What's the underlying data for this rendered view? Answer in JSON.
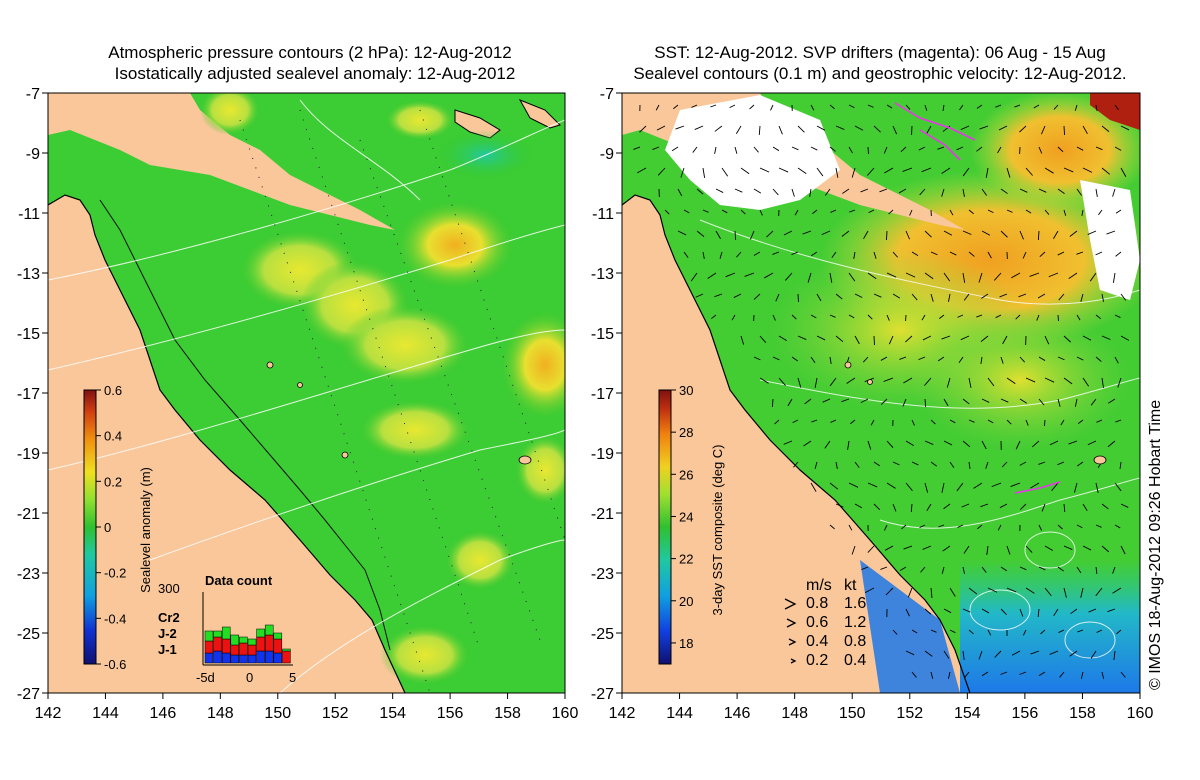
{
  "left_panel": {
    "title_line1": "Atmospheric pressure contours (2 hPa): 12-Aug-2012",
    "title_line2": "Isostatically adjusted sealevel anomaly: 12-Aug-2012",
    "colorbar": {
      "label": "Sealevel anomaly (m)",
      "ticks": [
        "0.6",
        "0.4",
        "0.2",
        "0",
        "-0.2",
        "-0.4",
        "-0.6"
      ],
      "range": [
        -0.6,
        0.6
      ]
    },
    "data_count": {
      "title": "Data count",
      "ymax_label": "300",
      "x_labels": [
        "-5d",
        "0",
        "5"
      ],
      "legend": [
        {
          "label": "Cr2",
          "color": "#22dd22"
        },
        {
          "label": "J-2",
          "color": "#ee1111"
        },
        {
          "label": "J-1",
          "color": "#1133ee"
        }
      ]
    }
  },
  "right_panel": {
    "title_line1": "SST: 12-Aug-2012. SVP drifters (magenta): 06 Aug - 15 Aug",
    "title_line2": "Sealevel contours (0.1 m) and geostrophic velocity: 12-Aug-2012.",
    "colorbar": {
      "label": "3-day SST composite (deg C)",
      "ticks": [
        "30",
        "28",
        "26",
        "24",
        "22",
        "20",
        "18"
      ],
      "range": [
        17,
        30
      ]
    },
    "velocity_legend": {
      "header_ms": "m/s",
      "header_kt": "kt",
      "rows": [
        {
          "ms": "0.8",
          "kt": "1.6"
        },
        {
          "ms": "0.6",
          "kt": "1.2"
        },
        {
          "ms": "0.4",
          "kt": "0.8"
        },
        {
          "ms": "0.2",
          "kt": "0.4"
        }
      ]
    },
    "credit": "© IMOS 18-Aug-2012 09:26 Hobart Time"
  },
  "axes": {
    "lat_ticks": [
      "-7",
      "-9",
      "-11",
      "-13",
      "-15",
      "-17",
      "-19",
      "-21",
      "-23",
      "-25",
      "-27"
    ],
    "lon_ticks": [
      "142",
      "144",
      "146",
      "148",
      "150",
      "152",
      "154",
      "156",
      "158",
      "160"
    ],
    "lat_range": [
      -27,
      -7
    ],
    "lon_range": [
      142,
      160
    ]
  },
  "colors": {
    "land": "#f9c79a",
    "sea_green": "#33cc33",
    "sea_light_green": "#88e040",
    "sea_yellow": "#d8e030",
    "warm_orange": "#f0a020",
    "cool_blue": "#2288ee",
    "drifter_magenta": "#ee33ee"
  }
}
